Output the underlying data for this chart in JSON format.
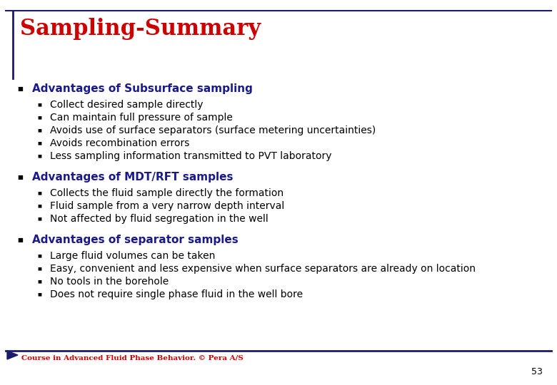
{
  "title": "Sampling-Summary",
  "title_color": "#cc0000",
  "title_fontsize": 22,
  "background_color": "#ffffff",
  "border_color": "#1a1a6e",
  "footer_text": "Course in Advanced Fluid Phase Behavior. © Pera A/S",
  "footer_color": "#cc0000",
  "page_number": "53",
  "sections": [
    {
      "heading": "Advantages of Subsurface sampling",
      "heading_color": "#1a1a8c",
      "items": [
        "Collect desired sample directly",
        "Can maintain full pressure of sample",
        "Avoids use of surface separators (surface metering uncertainties)",
        "Avoids recombination errors",
        "Less sampling information transmitted to PVT laboratory"
      ]
    },
    {
      "heading": "Advantages of MDT/RFT samples",
      "heading_color": "#1a1a8c",
      "items": [
        "Collects the fluid sample directly the formation",
        "Fluid sample from a very narrow depth interval",
        "Not affected by fluid segregation in the well"
      ]
    },
    {
      "heading": "Advantages of separator samples",
      "heading_color": "#1a1a8c",
      "items": [
        "Large fluid volumes can be taken",
        "Easy, convenient and less expensive when surface separators are already on location",
        "No tools in the borehole",
        "Does not require single phase fluid in the well bore"
      ]
    }
  ],
  "bullet_color": "#000000",
  "item_fontsize": 10,
  "heading_fontsize": 11
}
